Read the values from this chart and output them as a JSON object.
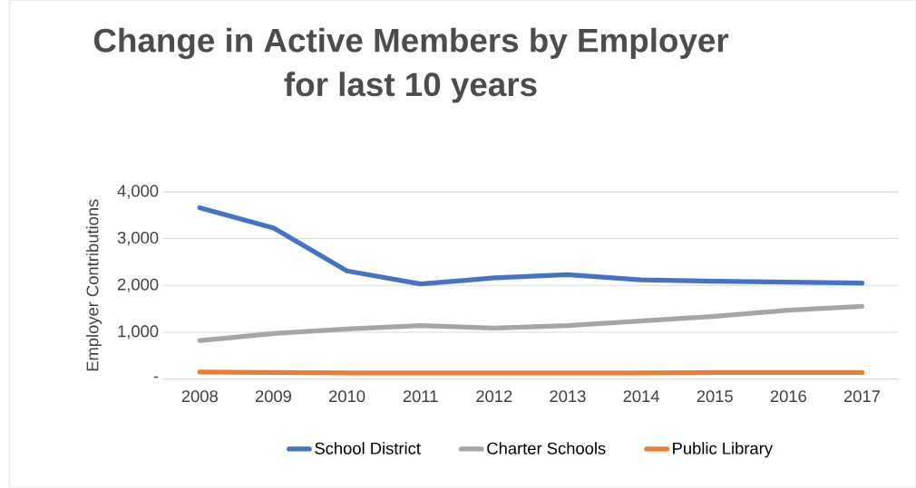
{
  "chart_data": {
    "type": "line",
    "title": "Change in Active Members by Employer\nfor last 10 years",
    "ylabel": "Employer Contributions",
    "categories": [
      "2008",
      "2009",
      "2010",
      "2011",
      "2012",
      "2013",
      "2014",
      "2015",
      "2016",
      "2017"
    ],
    "series": [
      {
        "name": "School District",
        "color": "#4472c4",
        "values": [
          3660,
          3230,
          2310,
          2030,
          2160,
          2230,
          2120,
          2090,
          2070,
          2050
        ]
      },
      {
        "name": "Charter Schools",
        "color": "#a5a5a5",
        "values": [
          820,
          970,
          1070,
          1140,
          1090,
          1140,
          1240,
          1340,
          1470,
          1550
        ]
      },
      {
        "name": "Public Library",
        "color": "#ed7d31",
        "values": [
          150,
          140,
          130,
          130,
          130,
          130,
          130,
          140,
          140,
          140
        ]
      }
    ],
    "ylim": [
      0,
      4000
    ],
    "yticks": [
      {
        "value": 0,
        "label": "-"
      },
      {
        "value": 1000,
        "label": "1,000"
      },
      {
        "value": 2000,
        "label": "2,000"
      },
      {
        "value": 3000,
        "label": "3,000"
      },
      {
        "value": 4000,
        "label": "4,000"
      }
    ],
    "grid": "y",
    "legend": "bottom",
    "marker": "none",
    "line_style": "solid"
  }
}
